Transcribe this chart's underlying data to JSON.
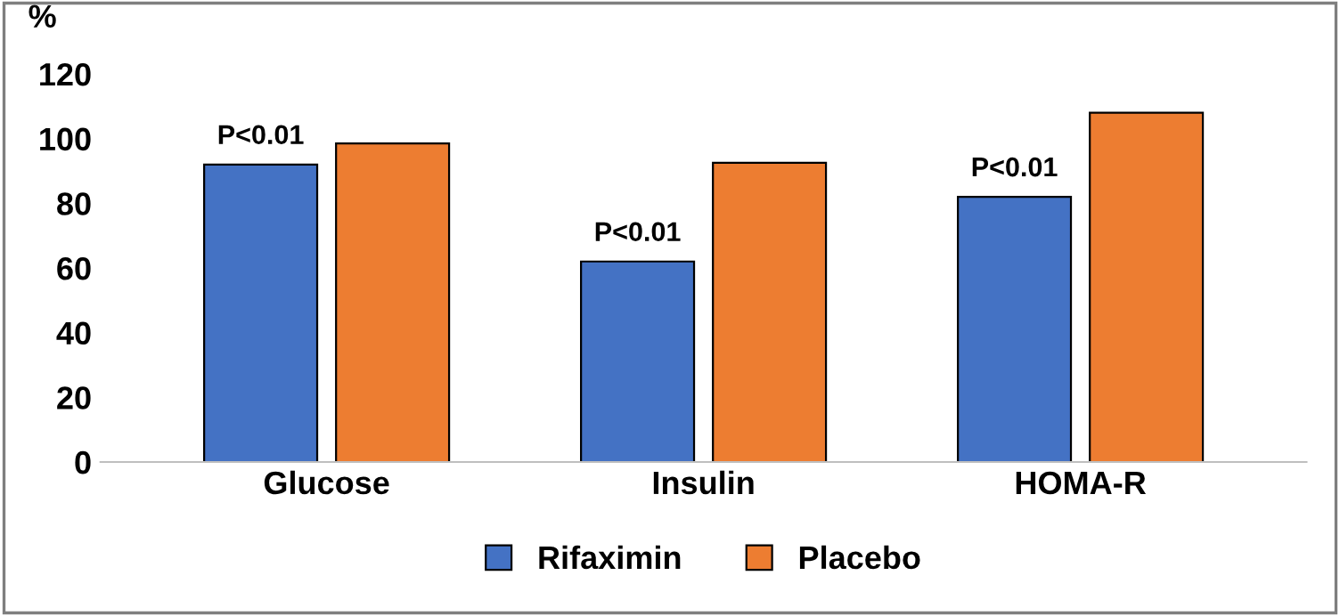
{
  "chart_data": {
    "type": "bar",
    "ylabel": "%",
    "categories": [
      "Glucose",
      "Insulin",
      "HOMA-R"
    ],
    "series": [
      {
        "name": "Rifaximin",
        "color": "#4472c4",
        "values": [
          92,
          62,
          82
        ]
      },
      {
        "name": "Placebo",
        "color": "#ed7d31",
        "values": [
          98.5,
          92.5,
          108
        ]
      }
    ],
    "ylim": [
      0,
      120
    ],
    "yticks": [
      0,
      20,
      40,
      60,
      80,
      100,
      120
    ],
    "grid": false,
    "legend": "bottom",
    "annotations": [
      "P<0.01",
      "P<0.01",
      "P<0.01"
    ]
  }
}
